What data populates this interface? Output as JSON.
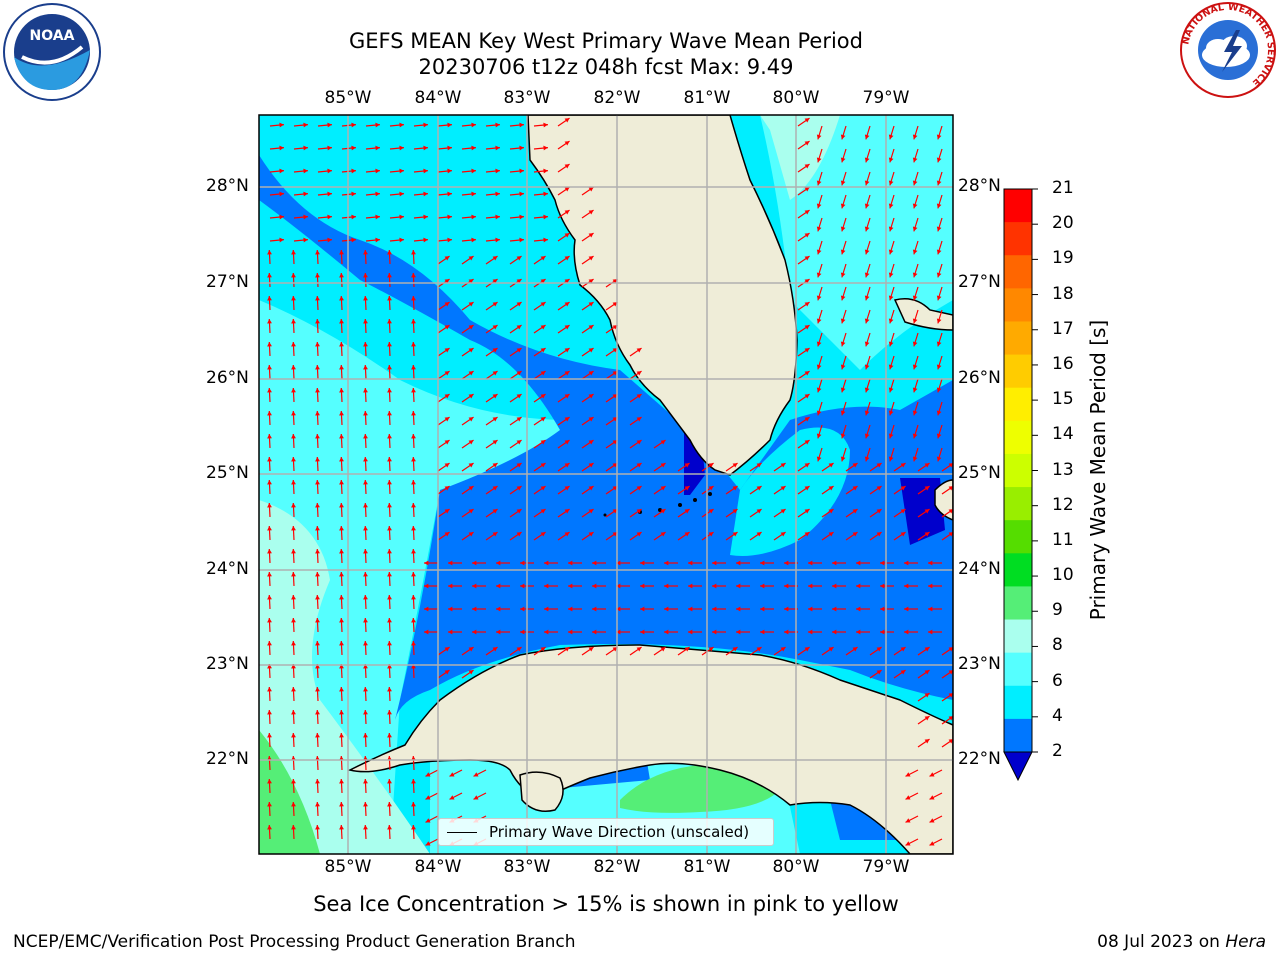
{
  "title_line1": "GEFS MEAN Key West Primary Wave Mean Period",
  "title_line2": "20230706 t12z 048h fcst   Max: 9.49",
  "lon_labels": [
    "85°W",
    "84°W",
    "83°W",
    "82°W",
    "81°W",
    "80°W",
    "79°W"
  ],
  "lat_labels": [
    "28°N",
    "27°N",
    "26°N",
    "25°N",
    "24°N",
    "23°N",
    "22°N"
  ],
  "colorbar": {
    "title": "Primary Wave Mean Period [s]",
    "ticks": [
      "21",
      "20",
      "19",
      "18",
      "17",
      "16",
      "15",
      "14",
      "13",
      "12",
      "11",
      "10",
      "9",
      "8",
      "6",
      "4",
      "2"
    ],
    "colors": [
      "#ff0000",
      "#ff3300",
      "#ff6600",
      "#ff8800",
      "#ffaa00",
      "#ffcc00",
      "#ffee00",
      "#eeff00",
      "#ccff00",
      "#99ee00",
      "#55dd00",
      "#00dd22",
      "#55ee77",
      "#aaffee",
      "#55ffff",
      "#00eeff",
      "#0077ff"
    ],
    "extend_color": "#0000cc"
  },
  "legend_text": "Primary Wave Direction (unscaled)",
  "footer_note": "Sea Ice Concentration > 15% is shown in pink to yellow",
  "credit_left": "NCEP/EMC/Verification Post Processing Product Generation Branch",
  "credit_date": "08 Jul 2023 on ",
  "credit_machine": "Hera",
  "logos": {
    "noaa": "NOAA",
    "nws_ring": "NATIONAL WEATHER SERVICE"
  },
  "colors": {
    "land": "#efedd8",
    "grid": "#b0b0b0",
    "arrow": "#ff0000"
  }
}
